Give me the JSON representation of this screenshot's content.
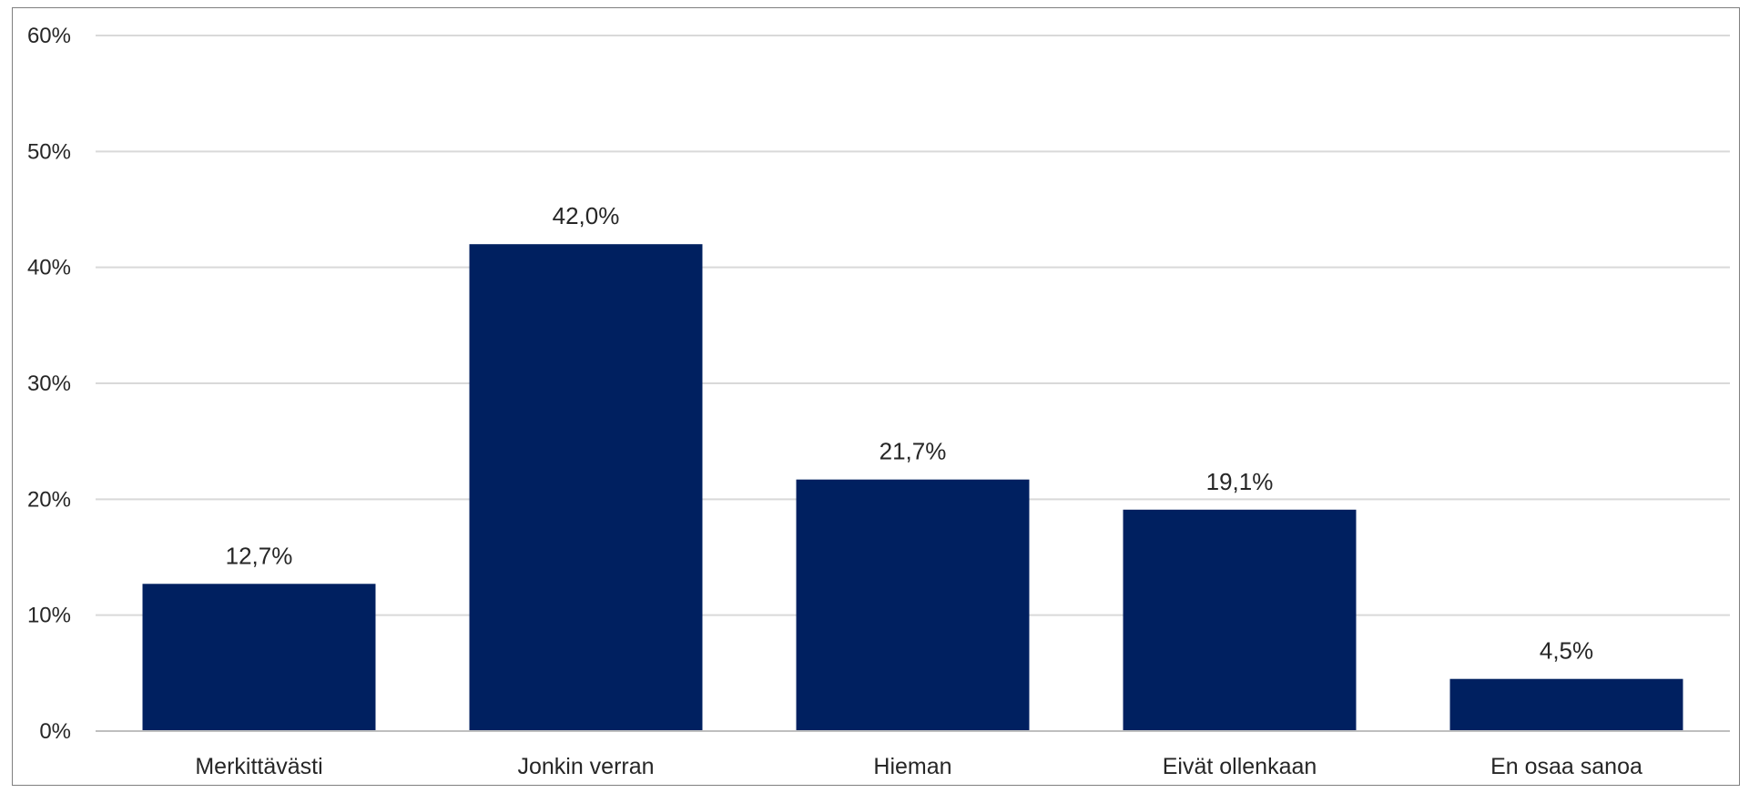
{
  "chart_data": {
    "type": "bar",
    "categories": [
      "Merkittävästi",
      "Jonkin verran",
      "Hieman",
      "Eivät ollenkaan",
      "En osaa sanoa"
    ],
    "values": [
      12.7,
      42.0,
      21.7,
      19.1,
      4.5
    ],
    "data_labels": [
      "12,7%",
      "42,0%",
      "21,7%",
      "19,1%",
      "4,5%"
    ],
    "y_ticks": [
      0,
      10,
      20,
      30,
      40,
      50,
      60
    ],
    "y_tick_labels": [
      "0%",
      "10%",
      "20%",
      "30%",
      "40%",
      "50%",
      "60%"
    ],
    "ylim": [
      0,
      60
    ],
    "title": "",
    "xlabel": "",
    "ylabel": "",
    "grid": true,
    "legend": "none",
    "bar_color": "#002060"
  }
}
